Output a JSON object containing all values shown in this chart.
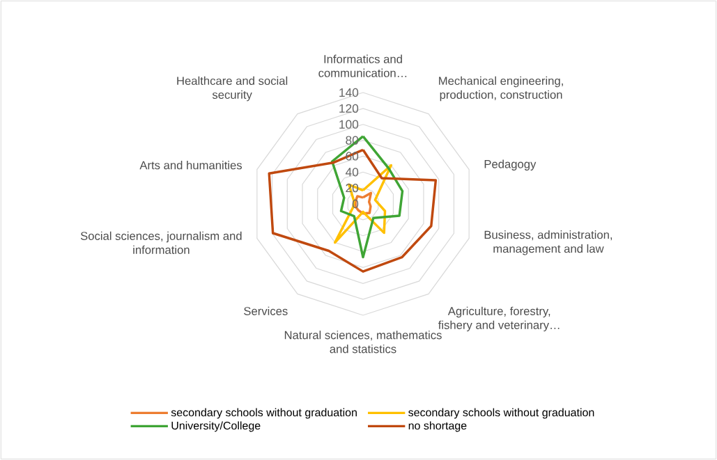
{
  "chart_data": {
    "type": "radar",
    "categories": [
      "Informatics and communication…",
      "Mechanical engineering, production, construction",
      "Pedagogy",
      "Business, administration, management and law",
      "Agriculture, forestry, fishery and veterinary…",
      "Natural sciences, mathematics and statistics",
      "Services",
      "Social sciences, journalism and information",
      "Arts and humanities",
      "Healthcare and social security"
    ],
    "series": [
      {
        "name": "secondary schools without graduation",
        "color": "#ed7d31",
        "values": [
          8,
          17,
          8,
          10,
          14,
          12,
          10,
          10,
          10,
          12
        ]
      },
      {
        "name": "secondary schools without graduation",
        "color": "#ffc000",
        "values": [
          17,
          60,
          16,
          29,
          45,
          10,
          60,
          13,
          12,
          30
        ]
      },
      {
        "name": "University/College",
        "color": "#3fa535",
        "values": [
          85,
          55,
          52,
          48,
          22,
          67,
          19,
          29,
          25,
          66
        ]
      },
      {
        "name": "no shortage",
        "color": "#c0490f",
        "values": [
          68,
          40,
          96,
          90,
          83,
          85,
          73,
          119,
          124,
          64
        ]
      }
    ],
    "ylim": [
      0,
      140
    ],
    "yticks": [
      0,
      20,
      40,
      60,
      80,
      100,
      120,
      140
    ],
    "grid": true,
    "legend": "bottom"
  }
}
